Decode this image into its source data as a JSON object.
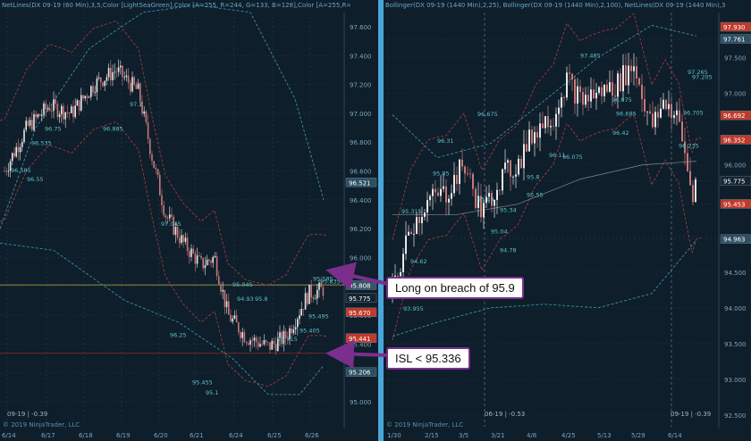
{
  "left_chart": {
    "header": "NetLines(DX 09-19 (60 Min),3,5,Color [LightSeaGreen],Color [A=255, R=244, G=133, B=128],Color [A=255,R=0, G=131, B",
    "copyright": "© 2019 NinjaTrader, LLC",
    "contract_label": "09-19 | -0.39",
    "yaxis_ticks": [
      "97.600",
      "97.400",
      "97.200",
      "97.000",
      "96.800",
      "96.600",
      "96.400",
      "96.200",
      "96.000",
      "95.800",
      "95.600",
      "95.400",
      "95.200",
      "95.000"
    ],
    "xaxis_ticks": [
      "6/14",
      "6/17",
      "6/18",
      "6/19",
      "6/20",
      "6/21",
      "6/24",
      "6/25",
      "6/26"
    ],
    "price_tags": [
      {
        "value": "96.521",
        "color": "#2e4f62"
      },
      {
        "value": "95.808",
        "color": "#3b5566"
      },
      {
        "value": "95.775",
        "color": "#15232e"
      },
      {
        "value": "95.670",
        "color": "#c0392b"
      },
      {
        "value": "95.441",
        "color": "#c0392b"
      },
      {
        "value": "95.206",
        "color": "#2e4f62"
      }
    ],
    "net_labels": [
      "96.585",
      "96.55",
      "96.535",
      "96.75",
      "96.885",
      "97.1",
      "97.045",
      "96.25",
      "95.455",
      "95.1",
      "95.045",
      "94.93",
      "95.8",
      "95.715",
      "95.405",
      "95.495",
      "95.585",
      "95.835",
      "95.815"
    ]
  },
  "right_chart": {
    "header": "Bollinger(DX 09-19 (1440 Min),2,25), Bollinger(DX 09-19 (1440 Min),2,100), NetLines(DX 09-19 (1440 Min),3,5,Color [Li",
    "copyright": "© 2019 NinjaTrader, LLC",
    "contract_label_left": "06-19 | -0.53",
    "contract_label_right": "09-19 | -0.39",
    "yaxis_ticks": [
      "97.930",
      "97.761",
      "97.500",
      "97.000",
      "96.692",
      "96.352",
      "96.000",
      "95.775",
      "95.453",
      "95.000",
      "94.963",
      "94.500",
      "94.000",
      "93.500",
      "93.000",
      "92.500"
    ],
    "xaxis_ticks": [
      "1/30",
      "2/15",
      "3/5",
      "3/21",
      "4/8",
      "4/25",
      "5/13",
      "5/29",
      "6/14"
    ],
    "price_tags": [
      {
        "value": "97.930",
        "color": "#c0392b"
      },
      {
        "value": "97.761",
        "color": "#2e4f62"
      },
      {
        "value": "96.692",
        "color": "#c0392b"
      },
      {
        "value": "96.352",
        "color": "#c0392b"
      },
      {
        "value": "95.775",
        "color": "#15232e"
      },
      {
        "value": "95.453",
        "color": "#c0392b"
      },
      {
        "value": "94.963",
        "color": "#2e4f62"
      }
    ],
    "net_labels": [
      "97.485",
      "97.265",
      "97.205",
      "96.875",
      "96.705",
      "96.685",
      "96.675",
      "96.42",
      "96.31",
      "96.235",
      "96.11",
      "96.075",
      "95.85",
      "95.8",
      "95.55",
      "95.49",
      "95.34",
      "95.315",
      "95.04",
      "94.78",
      "94.62",
      "93.955"
    ]
  },
  "callouts": {
    "long": "Long on breach of 95.9",
    "isl": "ISL < 95.336"
  },
  "colors": {
    "bg": "#0e1e2b",
    "divider": "#4aa6d8",
    "callout_border": "#7b2f8c",
    "up": "#e8e8e8",
    "down": "#c87878",
    "band_cyan": "#3d8fa8",
    "band_red": "#a03a3a",
    "breach_line": "#b5b53a",
    "isl_line": "#8a2a2a"
  }
}
